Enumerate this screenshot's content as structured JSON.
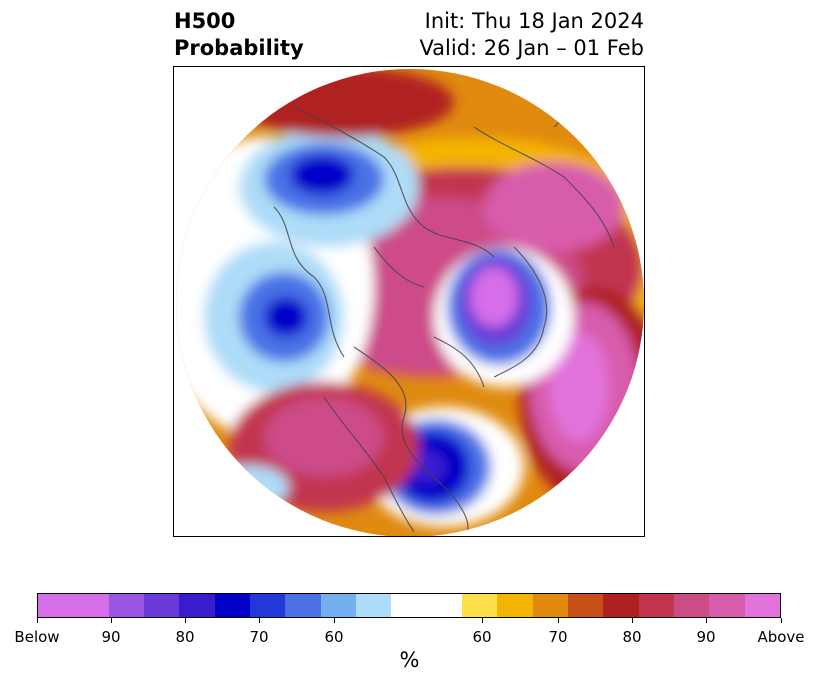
{
  "header": {
    "title_line1": "H500",
    "title_line2": "Probability",
    "init": "Init: Thu 18 Jan 2024",
    "valid": "Valid: 26 Jan – 01 Feb"
  },
  "colorbar": {
    "segments": [
      {
        "color": "#d56ee8",
        "width": 74
      },
      {
        "color": "#9b55e0",
        "width": 37
      },
      {
        "color": "#6a3ad8",
        "width": 37
      },
      {
        "color": "#3a1ccf",
        "width": 37
      },
      {
        "color": "#0000c8",
        "width": 37
      },
      {
        "color": "#2238d8",
        "width": 37
      },
      {
        "color": "#4a72e6",
        "width": 37
      },
      {
        "color": "#74b0f0",
        "width": 37
      },
      {
        "color": "#addcf8",
        "width": 37
      },
      {
        "color": "#ffffff",
        "width": 74
      },
      {
        "color": "#ffe04a",
        "width": 37
      },
      {
        "color": "#f4b400",
        "width": 37
      },
      {
        "color": "#e08a10",
        "width": 37
      },
      {
        "color": "#c85018",
        "width": 37
      },
      {
        "color": "#b02020",
        "width": 37
      },
      {
        "color": "#c23450",
        "width": 37
      },
      {
        "color": "#cc4c88",
        "width": 37
      },
      {
        "color": "#d85cac",
        "width": 37
      },
      {
        "color": "#e272dc",
        "width": 37
      }
    ],
    "tick_labels": [
      "Below",
      "90",
      "80",
      "70",
      "60",
      "60",
      "70",
      "80",
      "90",
      "Above"
    ],
    "unit": "%"
  }
}
